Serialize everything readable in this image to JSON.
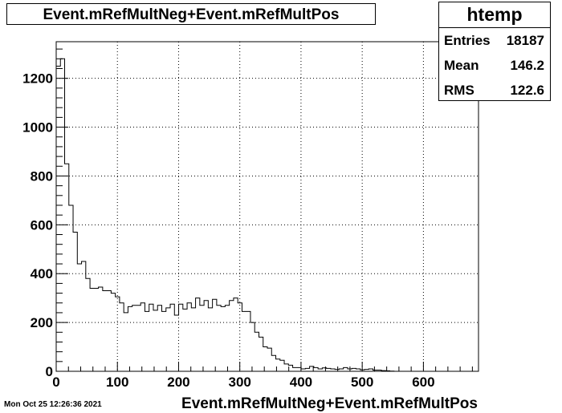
{
  "chart_data": {
    "type": "histogram",
    "title": "Event.mRefMultNeg+Event.mRefMultPos",
    "xlabel": "Event.mRefMultNeg+Event.mRefMultPos",
    "ylabel": "",
    "xlim": [
      0,
      690
    ],
    "ylim": [
      0,
      1350
    ],
    "grid": true,
    "x_ticks": [
      "0",
      "100",
      "200",
      "300",
      "400",
      "500",
      "600"
    ],
    "y_ticks": [
      "0",
      "200",
      "400",
      "600",
      "800",
      "1000",
      "1200"
    ],
    "bin_width": 6.9,
    "values": [
      1250,
      1280,
      850,
      680,
      570,
      440,
      450,
      380,
      340,
      340,
      345,
      330,
      330,
      320,
      305,
      280,
      240,
      265,
      270,
      270,
      280,
      245,
      275,
      250,
      270,
      245,
      260,
      275,
      230,
      275,
      255,
      280,
      260,
      300,
      270,
      290,
      260,
      295,
      270,
      265,
      270,
      290,
      300,
      280,
      245,
      245,
      200,
      160,
      140,
      100,
      95,
      65,
      50,
      45,
      30,
      25,
      15,
      15,
      10,
      12,
      20,
      15,
      10,
      14,
      12,
      10,
      8,
      10,
      15,
      10,
      12,
      10,
      6,
      8,
      10,
      5,
      5,
      3,
      2,
      1
    ]
  },
  "stats": {
    "name": "htemp",
    "rows": [
      {
        "label": "Entries",
        "value": "18187"
      },
      {
        "label": "Mean",
        "value": "146.2"
      },
      {
        "label": "RMS",
        "value": "122.6"
      }
    ]
  },
  "footer": {
    "datestamp": "Mon Oct 25 12:26:36 2021"
  }
}
